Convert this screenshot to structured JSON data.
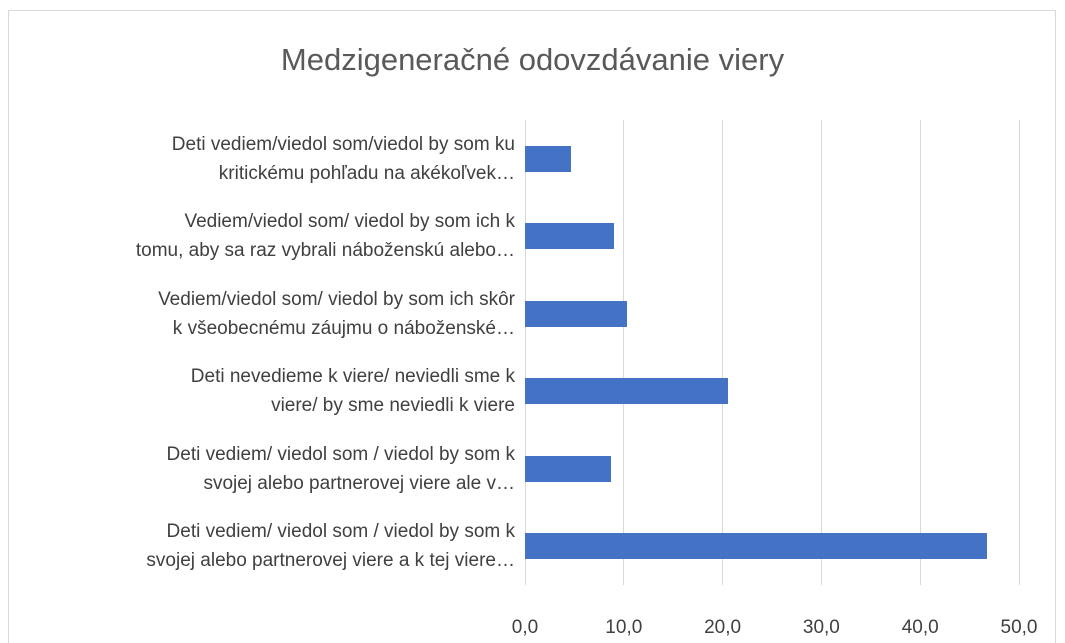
{
  "chart_data": {
    "type": "bar",
    "orientation": "horizontal",
    "title": "Medzigeneračné odovzdávanie viery",
    "categories": [
      "Deti vediem/viedol som/viedol by som ku\nkritickému pohľadu na akékoľvek…",
      "Vediem/viedol som/ viedol by som ich k\ntomu, aby sa raz vybrali náboženskú alebo…",
      "Vediem/viedol som/ viedol by som ich skôr\nk všeobecnému záujmu o náboženské…",
      "Deti nevedieme k viere/ neviedli sme k\nviere/ by sme neviedli k viere",
      "Deti vediem/ viedol som / viedol by som k\nsvojej alebo partnerovej viere ale v…",
      "Deti vediem/ viedol som / viedol by som k\nsvojej alebo partnerovej viere a k tej viere…"
    ],
    "values": [
      4.7,
      9.0,
      10.3,
      20.5,
      8.7,
      46.8
    ],
    "color": "#4472c4",
    "xlim": [
      0,
      50
    ],
    "xticks": [
      {
        "value": 0,
        "label": "0,0"
      },
      {
        "value": 10,
        "label": "10,0"
      },
      {
        "value": 20,
        "label": "20,0"
      },
      {
        "value": 30,
        "label": "30,0"
      },
      {
        "value": 40,
        "label": "40,0"
      },
      {
        "value": 50,
        "label": "50,0"
      }
    ],
    "grid": true
  }
}
